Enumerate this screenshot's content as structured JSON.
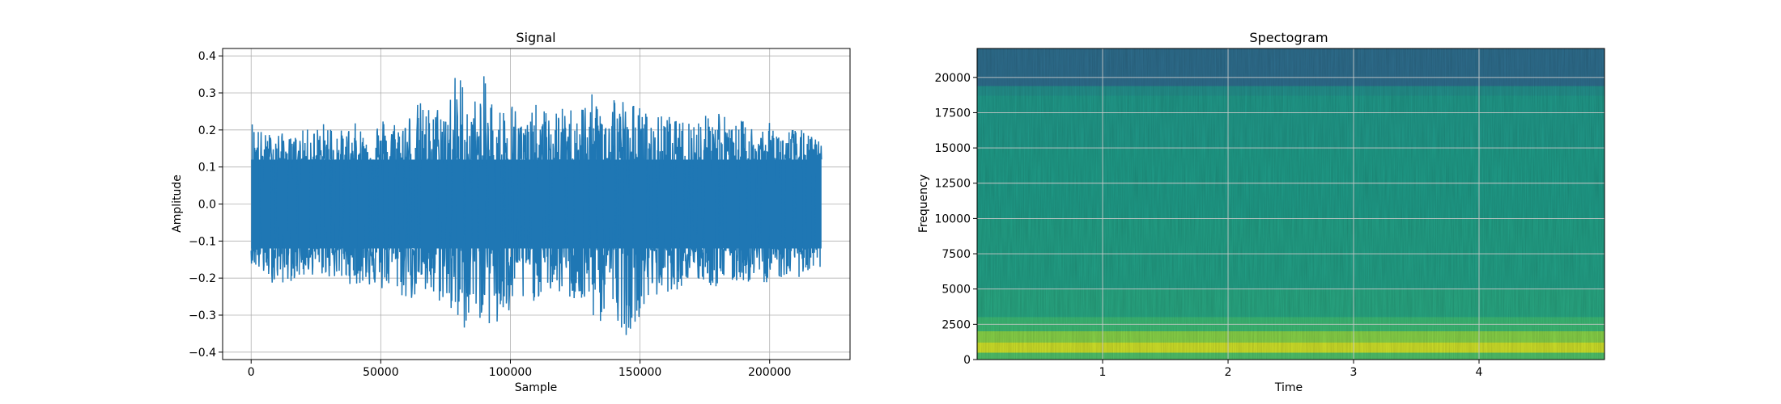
{
  "chart_data": [
    {
      "type": "line",
      "title": "Signal",
      "xlabel": "Sample",
      "ylabel": "Amplitude",
      "xlim": [
        -11000,
        231000
      ],
      "ylim": [
        -0.42,
        0.42
      ],
      "xticks": [
        0,
        50000,
        100000,
        150000,
        200000
      ],
      "xtick_labels": [
        "0",
        "50000",
        "100000",
        "150000",
        "200000"
      ],
      "yticks": [
        -0.4,
        -0.3,
        -0.2,
        -0.1,
        0.0,
        0.1,
        0.2,
        0.3,
        0.4
      ],
      "ytick_labels": [
        "−0.4",
        "−0.3",
        "−0.2",
        "−0.1",
        "0.0",
        "0.1",
        "0.2",
        "0.3",
        "0.4"
      ],
      "grid": true,
      "color": "#1f77b4",
      "series": [
        {
          "x": [
            0,
            5000,
            10000,
            15000,
            20000,
            25000,
            30000,
            35000,
            40000,
            45000,
            50000,
            55000,
            60000,
            65000,
            70000,
            75000,
            80000,
            85000,
            90000,
            95000,
            100000,
            105000,
            110000,
            115000,
            120000,
            125000,
            130000,
            135000,
            140000,
            145000,
            150000,
            155000,
            160000,
            165000,
            170000,
            175000,
            180000,
            185000,
            190000,
            195000,
            200000,
            205000,
            210000,
            215000,
            220000
          ],
          "upper": [
            0.24,
            0.19,
            0.2,
            0.18,
            0.2,
            0.21,
            0.23,
            0.2,
            0.22,
            0.2,
            0.24,
            0.23,
            0.25,
            0.28,
            0.26,
            0.29,
            0.38,
            0.27,
            0.35,
            0.26,
            0.3,
            0.22,
            0.27,
            0.25,
            0.26,
            0.27,
            0.3,
            0.29,
            0.32,
            0.28,
            0.27,
            0.23,
            0.25,
            0.22,
            0.25,
            0.24,
            0.28,
            0.21,
            0.23,
            0.21,
            0.22,
            0.2,
            0.21,
            0.19,
            0.17
          ],
          "lower": [
            -0.16,
            -0.2,
            -0.22,
            -0.21,
            -0.2,
            -0.19,
            -0.2,
            -0.21,
            -0.22,
            -0.22,
            -0.24,
            -0.23,
            -0.27,
            -0.25,
            -0.28,
            -0.26,
            -0.38,
            -0.3,
            -0.32,
            -0.36,
            -0.31,
            -0.28,
            -0.26,
            -0.24,
            -0.25,
            -0.27,
            -0.31,
            -0.33,
            -0.3,
            -0.36,
            -0.3,
            -0.26,
            -0.24,
            -0.23,
            -0.21,
            -0.22,
            -0.23,
            -0.22,
            -0.21,
            -0.22,
            -0.21,
            -0.2,
            -0.2,
            -0.19,
            -0.18
          ],
          "core": 0.12
        }
      ]
    },
    {
      "type": "heatmap",
      "title": "Spectogram",
      "xlabel": "Time",
      "ylabel": "Frequency",
      "xlim": [
        0,
        5.0
      ],
      "ylim": [
        0,
        22050
      ],
      "xticks": [
        1,
        2,
        3,
        4
      ],
      "xtick_labels": [
        "1",
        "2",
        "3",
        "4"
      ],
      "yticks": [
        0,
        2500,
        5000,
        7500,
        10000,
        12500,
        15000,
        17500,
        20000
      ],
      "ytick_labels": [
        "0",
        "2500",
        "5000",
        "7500",
        "10000",
        "12500",
        "15000",
        "17500",
        "20000"
      ],
      "grid": true,
      "colormap": "viridis",
      "bands": [
        {
          "from": 0,
          "to": 500,
          "level": 0.72
        },
        {
          "from": 500,
          "to": 1200,
          "level": 0.93
        },
        {
          "from": 1200,
          "to": 2000,
          "level": 0.82
        },
        {
          "from": 2000,
          "to": 3000,
          "level": 0.68
        },
        {
          "from": 3000,
          "to": 5000,
          "level": 0.6
        },
        {
          "from": 5000,
          "to": 10000,
          "level": 0.57
        },
        {
          "from": 10000,
          "to": 15000,
          "level": 0.55
        },
        {
          "from": 15000,
          "to": 18700,
          "level": 0.54
        },
        {
          "from": 18700,
          "to": 19400,
          "level": 0.5
        },
        {
          "from": 19400,
          "to": 22050,
          "level": 0.36
        }
      ]
    }
  ]
}
